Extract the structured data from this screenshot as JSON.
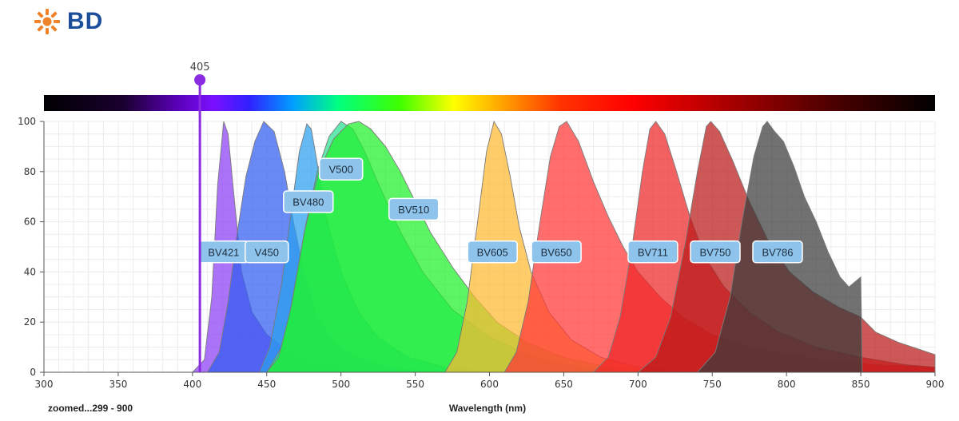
{
  "brand": {
    "name": "BD",
    "logo_icon": "bd-sunburst-icon",
    "logo_color": "#f0822a",
    "text_color": "#1b4f9c"
  },
  "laser": {
    "label": "405",
    "wavelength": 405,
    "color": "#8a2be2"
  },
  "footer": {
    "zoom_text": "zoomed...299 - 900"
  },
  "chart_data": {
    "type": "area",
    "xlabel": "Wavelength (nm)",
    "ylabel": "",
    "xlim": [
      300,
      900
    ],
    "ylim": [
      0,
      100
    ],
    "x_ticks": [
      300,
      350,
      400,
      450,
      500,
      550,
      600,
      650,
      700,
      750,
      800,
      850,
      900
    ],
    "y_ticks": [
      0,
      20,
      40,
      60,
      80,
      100
    ],
    "grid": true,
    "spectrum_bar": true,
    "series": [
      {
        "name": "BV421",
        "color": "#8a3df5",
        "peak": 421,
        "label_pos": [
          421,
          48
        ],
        "points": [
          [
            400,
            0
          ],
          [
            408,
            5
          ],
          [
            413,
            30
          ],
          [
            417,
            75
          ],
          [
            421,
            100
          ],
          [
            424,
            95
          ],
          [
            428,
            70
          ],
          [
            433,
            40
          ],
          [
            440,
            24
          ],
          [
            450,
            15
          ],
          [
            465,
            8
          ],
          [
            480,
            4
          ],
          [
            500,
            2
          ],
          [
            540,
            0
          ]
        ]
      },
      {
        "name": "V450",
        "color": "#2f5cf0",
        "peak": 450,
        "label_pos": [
          450,
          48
        ],
        "points": [
          [
            410,
            0
          ],
          [
            418,
            8
          ],
          [
            424,
            28
          ],
          [
            430,
            55
          ],
          [
            436,
            78
          ],
          [
            442,
            92
          ],
          [
            448,
            100
          ],
          [
            455,
            96
          ],
          [
            462,
            80
          ],
          [
            468,
            60
          ],
          [
            475,
            40
          ],
          [
            484,
            22
          ],
          [
            495,
            12
          ],
          [
            510,
            6
          ],
          [
            530,
            2
          ],
          [
            560,
            0
          ]
        ]
      },
      {
        "name": "BV480",
        "color": "#2aa0ee",
        "peak": 478,
        "label_pos": [
          478,
          68
        ],
        "points": [
          [
            445,
            0
          ],
          [
            452,
            10
          ],
          [
            460,
            35
          ],
          [
            466,
            62
          ],
          [
            472,
            88
          ],
          [
            477,
            99
          ],
          [
            480,
            97
          ],
          [
            485,
            80
          ],
          [
            490,
            62
          ],
          [
            500,
            40
          ],
          [
            512,
            24
          ],
          [
            525,
            14
          ],
          [
            545,
            6
          ],
          [
            570,
            2
          ],
          [
            600,
            0
          ]
        ]
      },
      {
        "name": "V500",
        "color": "#28e090",
        "peak": 500,
        "label_pos": [
          500,
          81
        ],
        "points": [
          [
            450,
            0
          ],
          [
            460,
            10
          ],
          [
            468,
            30
          ],
          [
            476,
            58
          ],
          [
            484,
            80
          ],
          [
            492,
            94
          ],
          [
            500,
            100
          ],
          [
            508,
            97
          ],
          [
            516,
            88
          ],
          [
            526,
            74
          ],
          [
            540,
            56
          ],
          [
            555,
            40
          ],
          [
            575,
            25
          ],
          [
            600,
            14
          ],
          [
            630,
            6
          ],
          [
            660,
            2
          ],
          [
            700,
            0
          ]
        ]
      },
      {
        "name": "BV510",
        "color": "#1ef02a",
        "peak": 510,
        "label_pos": [
          549,
          65
        ],
        "points": [
          [
            450,
            0
          ],
          [
            458,
            6
          ],
          [
            466,
            25
          ],
          [
            475,
            55
          ],
          [
            485,
            80
          ],
          [
            495,
            93
          ],
          [
            505,
            99
          ],
          [
            512,
            100
          ],
          [
            520,
            97
          ],
          [
            530,
            90
          ],
          [
            540,
            80
          ],
          [
            550,
            68
          ],
          [
            560,
            56
          ],
          [
            575,
            42
          ],
          [
            590,
            30
          ],
          [
            605,
            20
          ],
          [
            625,
            12
          ],
          [
            650,
            6
          ],
          [
            680,
            2
          ],
          [
            720,
            0
          ]
        ]
      },
      {
        "name": "BV605",
        "color": "#ffb830",
        "peak": 603,
        "label_pos": [
          602,
          48
        ],
        "points": [
          [
            570,
            0
          ],
          [
            578,
            8
          ],
          [
            585,
            28
          ],
          [
            592,
            60
          ],
          [
            598,
            88
          ],
          [
            603,
            100
          ],
          [
            608,
            95
          ],
          [
            614,
            78
          ],
          [
            620,
            58
          ],
          [
            628,
            40
          ],
          [
            640,
            24
          ],
          [
            655,
            13
          ],
          [
            675,
            6
          ],
          [
            700,
            2
          ],
          [
            730,
            0
          ]
        ]
      },
      {
        "name": "BV650",
        "color": "#ff3535",
        "peak": 650,
        "label_pos": [
          645,
          48
        ],
        "points": [
          [
            610,
            0
          ],
          [
            618,
            8
          ],
          [
            626,
            28
          ],
          [
            634,
            60
          ],
          [
            641,
            86
          ],
          [
            647,
            98
          ],
          [
            652,
            100
          ],
          [
            660,
            92
          ],
          [
            670,
            76
          ],
          [
            680,
            62
          ],
          [
            690,
            50
          ],
          [
            700,
            40
          ],
          [
            715,
            30
          ],
          [
            730,
            22
          ],
          [
            750,
            15
          ],
          [
            780,
            9
          ],
          [
            820,
            5
          ],
          [
            860,
            3
          ],
          [
            900,
            2
          ]
        ]
      },
      {
        "name": "BV711",
        "color": "#ee2626",
        "peak": 711,
        "label_pos": [
          710,
          48
        ],
        "points": [
          [
            670,
            0
          ],
          [
            680,
            6
          ],
          [
            688,
            22
          ],
          [
            696,
            50
          ],
          [
            703,
            80
          ],
          [
            708,
            97
          ],
          [
            712,
            100
          ],
          [
            718,
            95
          ],
          [
            726,
            80
          ],
          [
            735,
            62
          ],
          [
            745,
            46
          ],
          [
            758,
            34
          ],
          [
            775,
            24
          ],
          [
            795,
            16
          ],
          [
            820,
            10
          ],
          [
            850,
            6
          ],
          [
            880,
            3
          ],
          [
            900,
            2
          ]
        ]
      },
      {
        "name": "BV750",
        "color": "#b81818",
        "peak": 748,
        "label_pos": [
          752,
          48
        ],
        "points": [
          [
            700,
            0
          ],
          [
            712,
            6
          ],
          [
            722,
            22
          ],
          [
            732,
            52
          ],
          [
            740,
            80
          ],
          [
            746,
            98
          ],
          [
            749,
            100
          ],
          [
            755,
            96
          ],
          [
            764,
            84
          ],
          [
            775,
            68
          ],
          [
            788,
            52
          ],
          [
            802,
            40
          ],
          [
            818,
            32
          ],
          [
            835,
            26
          ],
          [
            850,
            22
          ],
          [
            860,
            16
          ],
          [
            875,
            12
          ],
          [
            890,
            9
          ],
          [
            900,
            7
          ]
        ]
      },
      {
        "name": "BV786",
        "color": "#3a3a3a",
        "peak": 787,
        "label_pos": [
          794,
          48
        ],
        "points": [
          [
            740,
            0
          ],
          [
            752,
            8
          ],
          [
            762,
            30
          ],
          [
            770,
            60
          ],
          [
            778,
            86
          ],
          [
            784,
            98
          ],
          [
            787,
            100
          ],
          [
            792,
            96
          ],
          [
            798,
            92
          ],
          [
            805,
            82
          ],
          [
            812,
            70
          ],
          [
            820,
            60
          ],
          [
            828,
            48
          ],
          [
            836,
            38
          ],
          [
            842,
            34
          ],
          [
            848,
            37
          ],
          [
            850,
            38
          ],
          [
            851,
            0
          ]
        ]
      }
    ]
  }
}
